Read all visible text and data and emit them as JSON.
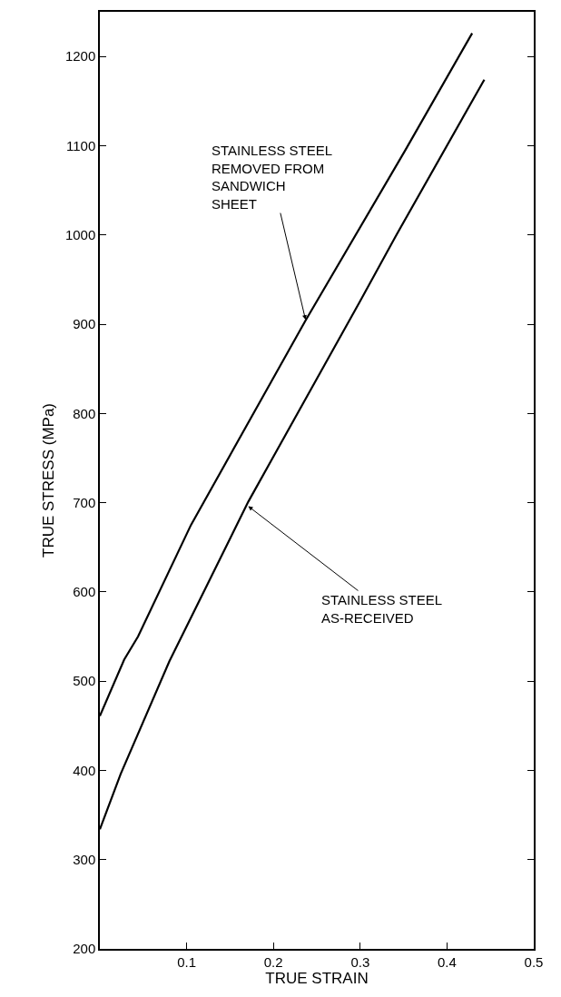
{
  "chart_data": {
    "type": "line",
    "xlabel": "TRUE STRAIN",
    "ylabel": "TRUE STRESS (MPa)",
    "xlim": [
      0,
      0.5
    ],
    "xticks": [
      0.1,
      0.2,
      0.3,
      0.4,
      0.5
    ],
    "ylim": [
      200,
      1250
    ],
    "yticks": [
      200,
      300,
      400,
      500,
      600,
      700,
      800,
      900,
      1000,
      1100,
      1200
    ],
    "marker": "none",
    "line_style": "solid",
    "series": [
      {
        "color": "#000000",
        "x": [
          0,
          0.028,
          0.044,
          0.105,
          0.237,
          0.352,
          0.429
        ],
        "values": [
          461,
          524,
          550,
          675,
          904,
          1095,
          1226
        ]
      },
      {
        "color": "#000000",
        "x": [
          0,
          0.024,
          0.08,
          0.171,
          0.3,
          0.34,
          0.443
        ],
        "values": [
          334,
          396,
          522,
          701,
          926,
          997,
          1174
        ]
      }
    ],
    "annotations": [
      {
        "text": "STAINLESS STEEL\nREMOVED FROM\nSANDWICH\nSHEET",
        "x": 0.237,
        "y": 905
      },
      {
        "text": "STAINLESS STEEL\nAS-RECEIVED",
        "x": 0.171,
        "y": 696
      }
    ]
  }
}
